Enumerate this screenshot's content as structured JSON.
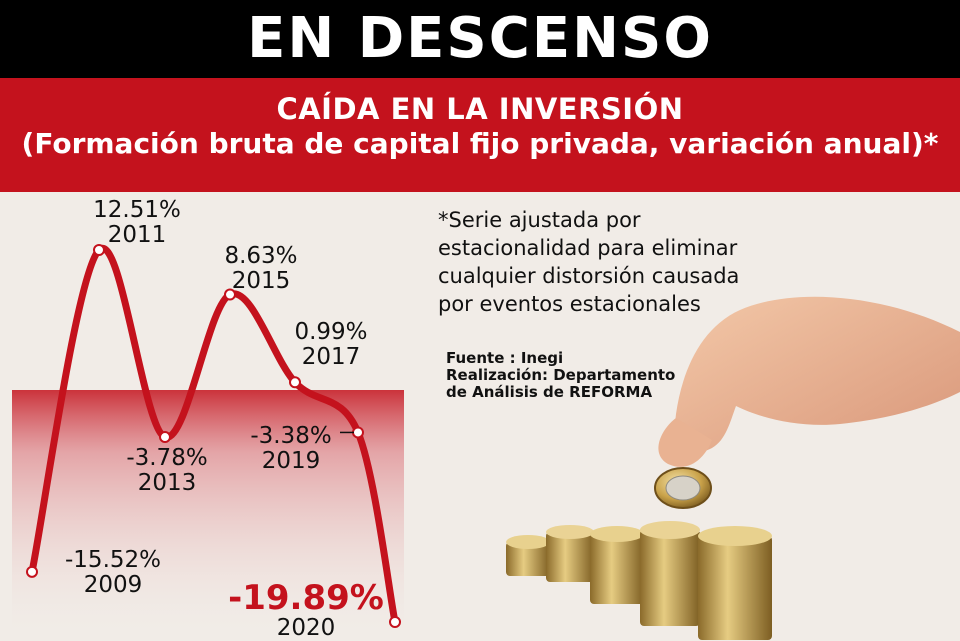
{
  "header": {
    "title": "EN DESCENSO",
    "subtitle": "CAÍDA EN LA INVERSIÓN",
    "subtitle2": "(Formación bruta de capital fijo privada, variación anual)*"
  },
  "note": {
    "line1": "*Serie ajustada por",
    "line2": "estacionalidad para eliminar",
    "line3": "cualquier distorsión causada",
    "line4": "por eventos estacionales"
  },
  "credits": {
    "source": "Fuente : Inegi",
    "made_by_1": "Realización: Departamento",
    "made_by_2": "de Análisis de REFORMA"
  },
  "colors": {
    "accent": "#c4121d",
    "header_bg": "#000000",
    "background": "#f1ece7"
  },
  "chart_data": {
    "type": "line",
    "x": [
      2009,
      2011,
      2013,
      2015,
      2017,
      2019,
      2020
    ],
    "values": [
      -15.52,
      12.51,
      -3.78,
      8.63,
      0.99,
      -3.38,
      -19.89
    ],
    "point_labels": [
      "-15.52%",
      "12.51%",
      "-3.78%",
      "8.63%",
      "0.99%",
      "-3.38%",
      "-19.89%"
    ],
    "year_labels": [
      "2009",
      "2011",
      "2013",
      "2015",
      "2017",
      "2019",
      "2020"
    ],
    "line_color": "#c4121d",
    "negative_shading": true
  },
  "image": {
    "illustration": "hand dropping coin onto stacks of coins"
  }
}
